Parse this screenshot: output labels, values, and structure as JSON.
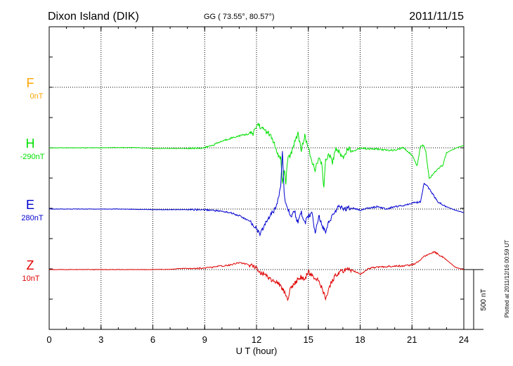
{
  "header": {
    "station": "Dixon Island (DIK)",
    "coords": "GG ( 73.55°,  80.57°)",
    "date": "2011/11/15"
  },
  "footer": {
    "plotted": "Plotted at 2011/12/16 00:59 UT",
    "scale_bar_label": "500 nT"
  },
  "colors": {
    "F": "#ffa500",
    "H": "#00e000",
    "E": "#0000d0",
    "Z": "#e00000",
    "grid": "#000000"
  },
  "chart_data": {
    "type": "line",
    "xlabel": "U T (hour)",
    "xlim": [
      0,
      24
    ],
    "xticks": [
      0,
      3,
      6,
      9,
      12,
      15,
      18,
      21,
      24
    ],
    "xtick_labels": [
      "0",
      "3",
      "6",
      "9",
      "12",
      "15",
      "18",
      "21",
      "24"
    ],
    "grid": true,
    "scale_bar_nT": 500,
    "series": [
      {
        "name": "F",
        "baseline_label": "0nT",
        "values": []
      },
      {
        "name": "H",
        "baseline_label": "-290nT",
        "x": [
          0,
          1,
          2,
          3,
          4,
          5,
          6,
          7,
          8,
          9,
          9.5,
          10,
          10.5,
          11,
          11.5,
          11.8,
          12,
          12.1,
          12.3,
          12.5,
          12.8,
          13,
          13.2,
          13.4,
          13.5,
          13.6,
          13.7,
          13.8,
          14,
          14.2,
          14.4,
          14.6,
          14.8,
          15,
          15.2,
          15.4,
          15.6,
          15.8,
          15.9,
          16,
          16.2,
          16.4,
          16.6,
          16.8,
          17,
          17.3,
          17.6,
          18,
          18.5,
          19,
          19.5,
          20,
          20.5,
          21,
          21.3,
          21.5,
          21.7,
          21.8,
          22,
          22.2,
          22.5,
          22.8,
          23,
          23.3,
          23.6,
          24
        ],
        "values": [
          0,
          0,
          0,
          0,
          2,
          2,
          -5,
          -5,
          -5,
          0,
          25,
          55,
          80,
          100,
          115,
          120,
          180,
          200,
          160,
          150,
          100,
          50,
          -60,
          -80,
          -310,
          -180,
          -290,
          -100,
          -50,
          50,
          120,
          -20,
          100,
          0,
          -120,
          -180,
          -90,
          -150,
          -350,
          -100,
          -50,
          -120,
          0,
          -40,
          -80,
          0,
          -30,
          0,
          -10,
          -10,
          -20,
          -20,
          0,
          -60,
          -150,
          20,
          20,
          -30,
          -260,
          -220,
          -180,
          -140,
          -40,
          -20,
          0,
          20
        ]
      },
      {
        "name": "E",
        "baseline_label": "280nT",
        "x": [
          0,
          1,
          2,
          3,
          4,
          5,
          6,
          7,
          8,
          9,
          9.5,
          10,
          10.5,
          11,
          11.5,
          11.8,
          12,
          12.2,
          12.4,
          12.6,
          12.8,
          13,
          13.2,
          13.4,
          13.5,
          13.6,
          13.7,
          13.8,
          14,
          14.2,
          14.4,
          14.6,
          14.8,
          15,
          15.2,
          15.4,
          15.6,
          15.8,
          16,
          16.2,
          16.4,
          16.6,
          16.8,
          17,
          17.5,
          18,
          18.5,
          19,
          19.5,
          20,
          20.5,
          21,
          21.5,
          21.7,
          22,
          22.5,
          23,
          23.5,
          24
        ],
        "values": [
          0,
          0,
          0,
          0,
          0,
          -2,
          -5,
          -5,
          -5,
          -5,
          -10,
          -20,
          -30,
          -55,
          -95,
          -130,
          -160,
          -220,
          -150,
          -100,
          -50,
          -20,
          50,
          200,
          500,
          150,
          30,
          0,
          -60,
          -20,
          -120,
          -30,
          -120,
          -60,
          -30,
          -200,
          -60,
          -140,
          -180,
          -100,
          -60,
          -10,
          20,
          0,
          10,
          -10,
          10,
          20,
          0,
          20,
          30,
          50,
          60,
          220,
          170,
          60,
          20,
          -10,
          -30
        ]
      },
      {
        "name": "Z",
        "baseline_label": "10nT",
        "x": [
          0,
          1,
          2,
          3,
          4,
          5,
          6,
          7,
          7.5,
          8,
          9,
          9.5,
          10,
          10.5,
          11,
          11.5,
          12,
          12.2,
          12.5,
          13,
          13.3,
          13.6,
          13.8,
          14,
          14.2,
          14.5,
          14.8,
          15,
          15.3,
          15.5,
          15.8,
          16,
          16.3,
          16.6,
          17,
          17.5,
          18,
          18.5,
          19,
          19.5,
          20,
          20.5,
          21,
          21.3,
          21.6,
          22,
          22.3,
          22.6,
          23,
          23.5,
          24
        ],
        "values": [
          0,
          0,
          0,
          0,
          0,
          0,
          0,
          2,
          8,
          10,
          12,
          20,
          30,
          40,
          60,
          40,
          20,
          -20,
          -40,
          -100,
          -120,
          -180,
          -240,
          -150,
          -120,
          -60,
          -80,
          -20,
          -60,
          -80,
          -160,
          -240,
          -120,
          -40,
          -10,
          0,
          -40,
          10,
          20,
          25,
          30,
          30,
          40,
          60,
          100,
          130,
          150,
          120,
          80,
          20,
          0
        ]
      }
    ]
  }
}
